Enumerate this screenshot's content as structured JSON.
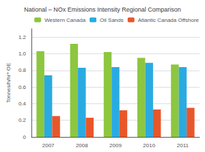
{
  "chart_data": {
    "type": "bar",
    "title": "National – NOx Emissions Intensity Regional Comparison",
    "ylabel": "Tonnes/h/hr* OE",
    "categories": [
      "2007",
      "2008",
      "2009",
      "2010",
      "2011"
    ],
    "series": [
      {
        "name": "Western Canada",
        "color": "#8dc63f",
        "values": [
          1.03,
          1.12,
          1.02,
          0.95,
          0.87
        ]
      },
      {
        "name": "Oil Sands",
        "color": "#29abe2",
        "values": [
          0.74,
          0.83,
          0.84,
          0.89,
          0.84
        ]
      },
      {
        "name": "Atlantic Canada Offshore",
        "color": "#e8572a",
        "values": [
          0.25,
          0.23,
          0.32,
          0.33,
          0.35
        ]
      }
    ],
    "ylim": [
      0,
      1.3
    ],
    "yticks": [
      0,
      0.2,
      0.4,
      0.6,
      0.8,
      {
        "value": 1.0,
        "label": "1.0"
      },
      1.2
    ],
    "grid": true,
    "legend": "upper right"
  }
}
